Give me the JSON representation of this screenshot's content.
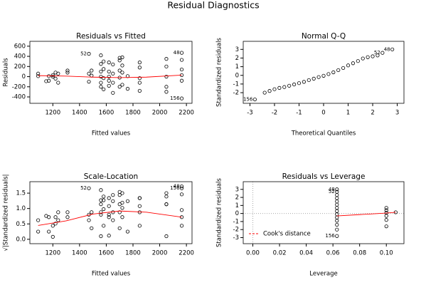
{
  "title": "Residual Diagnostics",
  "chart_data": [
    {
      "type": "scatter",
      "title": "Residuals vs Fitted",
      "xlabel": "Fitted values",
      "ylabel": "Residuals",
      "color": "#000000",
      "x": [
        1090,
        1090,
        1150,
        1170,
        1170,
        1200,
        1200,
        1220,
        1220,
        1240,
        1240,
        1310,
        1310,
        1470,
        1470,
        1470,
        1490,
        1490,
        1560,
        1560,
        1560,
        1560,
        1560,
        1560,
        1580,
        1580,
        1580,
        1580,
        1620,
        1620,
        1620,
        1620,
        1620,
        1650,
        1650,
        1650,
        1650,
        1700,
        1700,
        1700,
        1700,
        1700,
        1720,
        1720,
        1720,
        1720,
        1760,
        1760,
        1850,
        1850,
        1850,
        1850,
        1850,
        2050,
        2050,
        2050,
        2050,
        2050,
        2165,
        2165,
        2165,
        2165,
        2165,
        2165
      ],
      "values": [
        60,
        10,
        -90,
        10,
        -80,
        30,
        0,
        80,
        -40,
        60,
        -120,
        120,
        80,
        450,
        60,
        -100,
        120,
        20,
        420,
        250,
        100,
        0,
        -120,
        -200,
        300,
        150,
        -30,
        -250,
        280,
        100,
        0,
        -80,
        -180,
        240,
        60,
        -120,
        -320,
        370,
        320,
        120,
        -20,
        -200,
        380,
        220,
        80,
        -160,
        10,
        -240,
        280,
        180,
        -30,
        -120,
        -280,
        350,
        200,
        0,
        -200,
        -300,
        470,
        330,
        140,
        30,
        -80,
        -430
      ],
      "smooth": {
        "color": "#ff0000",
        "x": [
          1090,
          1300,
          1500,
          1700,
          1900,
          2165
        ],
        "values": [
          20,
          10,
          -10,
          -20,
          -10,
          30
        ]
      },
      "annotations": [
        {
          "label": "48",
          "x": 2165,
          "y": 470
        },
        {
          "label": "52",
          "x": 1470,
          "y": 450
        },
        {
          "label": "156",
          "x": 2165,
          "y": -430
        }
      ],
      "xlim": [
        1060,
        2210
      ],
      "xticks": [
        1200,
        1400,
        1600,
        1800,
        2000,
        2200
      ],
      "ylim": [
        -470,
        640
      ],
      "yticks": [
        -400,
        -200,
        0,
        200,
        400,
        600
      ]
    },
    {
      "type": "scatter",
      "title": "Normal Q-Q",
      "xlabel": "Theoretical Quantiles",
      "ylabel": "Standardized residuals",
      "color": "#000000",
      "x": [
        -2.8,
        -2.4,
        -2.2,
        -2.0,
        -1.8,
        -1.6,
        -1.4,
        -1.2,
        -1.0,
        -0.8,
        -0.6,
        -0.4,
        -0.2,
        0,
        0.2,
        0.4,
        0.6,
        0.8,
        1.0,
        1.2,
        1.4,
        1.6,
        1.8,
        2.0,
        2.2,
        2.4,
        2.8
      ],
      "values": [
        -2.78,
        -2.0,
        -1.8,
        -1.6,
        -1.45,
        -1.35,
        -1.2,
        -1.05,
        -0.9,
        -0.75,
        -0.55,
        -0.38,
        -0.2,
        -0.05,
        0.15,
        0.35,
        0.6,
        0.85,
        1.15,
        1.4,
        1.65,
        1.95,
        2.1,
        2.2,
        2.3,
        2.6,
        3.0
      ],
      "annotations": [
        {
          "label": "156",
          "x": -2.8,
          "y": -2.78
        },
        {
          "label": "52",
          "x": 2.4,
          "y": 2.6
        },
        {
          "label": "48",
          "x": 2.8,
          "y": 3.0
        }
      ],
      "xlim": [
        -3.1,
        3.1
      ],
      "xticks": [
        -3,
        -2,
        -1,
        0,
        1,
        2,
        3
      ],
      "ylim": [
        -2.9,
        3.6
      ],
      "yticks": [
        -2,
        -1,
        0,
        1,
        2,
        3
      ]
    },
    {
      "type": "scatter",
      "title": "Scale-Location",
      "xlabel": "Fitted values",
      "ylabel": "√|Standardized residuals|",
      "color": "#000000",
      "x": [
        1090,
        1090,
        1150,
        1170,
        1170,
        1200,
        1200,
        1220,
        1220,
        1240,
        1240,
        1310,
        1310,
        1470,
        1470,
        1470,
        1490,
        1490,
        1560,
        1560,
        1560,
        1560,
        1560,
        1560,
        1580,
        1580,
        1580,
        1580,
        1620,
        1620,
        1620,
        1620,
        1620,
        1650,
        1650,
        1650,
        1650,
        1700,
        1700,
        1700,
        1700,
        1700,
        1720,
        1720,
        1720,
        1720,
        1760,
        1760,
        1850,
        1850,
        1850,
        1850,
        1850,
        2050,
        2050,
        2050,
        2050,
        2050,
        2165,
        2165,
        2165,
        2165,
        2165,
        2165
      ],
      "values": [
        0.62,
        0.25,
        0.76,
        0.25,
        0.72,
        0.44,
        0.08,
        0.72,
        0.51,
        0.62,
        0.88,
        0.88,
        0.72,
        1.66,
        0.62,
        0.8,
        0.88,
        0.36,
        1.6,
        1.27,
        0.8,
        0.1,
        0.88,
        1.14,
        1.39,
        0.98,
        0.44,
        1.27,
        1.34,
        0.8,
        0.12,
        0.72,
        1.08,
        1.24,
        0.62,
        0.88,
        1.44,
        1.54,
        1.44,
        0.88,
        0.36,
        1.14,
        1.5,
        1.19,
        0.72,
        1.02,
        0.25,
        1.24,
        1.34,
        1.08,
        0.44,
        0.88,
        1.34,
        1.5,
        1.14,
        0.1,
        1.14,
        1.39,
        1.72,
        1.46,
        0.95,
        0.44,
        0.72,
        1.66
      ],
      "smooth": {
        "color": "#ff0000",
        "x": [
          1090,
          1300,
          1500,
          1700,
          1900,
          2165
        ],
        "values": [
          0.45,
          0.6,
          0.82,
          0.92,
          0.88,
          0.72
        ]
      },
      "annotations": [
        {
          "label": "52",
          "x": 1470,
          "y": 1.66
        },
        {
          "label": "48",
          "x": 2165,
          "y": 1.72
        },
        {
          "label": "156",
          "x": 2165,
          "y": 1.66
        }
      ],
      "xlim": [
        1060,
        2210
      ],
      "xticks": [
        1200,
        1400,
        1600,
        1800,
        2000,
        2200
      ],
      "ylim": [
        -0.05,
        1.78
      ],
      "yticks": [
        {
          "value": 0,
          "label": "0.0"
        },
        0.5,
        {
          "value": 1,
          "label": "1.0"
        },
        1.5
      ]
    },
    {
      "type": "scatter",
      "title": "Residuals vs Leverage",
      "xlabel": "Leverage",
      "ylabel": "Standardized residuals",
      "color": "#000000",
      "x": [
        0.063,
        0.063,
        0.063,
        0.063,
        0.063,
        0.063,
        0.063,
        0.063,
        0.063,
        0.063,
        0.063,
        0.063,
        0.063,
        0.063,
        0.1,
        0.1,
        0.1,
        0.1,
        0.1,
        0.1,
        0.107
      ],
      "values": [
        3.0,
        2.7,
        2.3,
        1.9,
        1.5,
        1.1,
        0.7,
        0.3,
        -0.1,
        -0.5,
        -0.9,
        -1.4,
        -2.0,
        -2.8,
        0.7,
        0.4,
        0.1,
        -0.3,
        -0.8,
        -1.6,
        0.15
      ],
      "smooth": {
        "color": "#ff0000",
        "x": [
          0.063,
          0.1,
          0.107
        ],
        "values": [
          -0.3,
          0.05,
          0.15
        ]
      },
      "annotations": [
        {
          "label": "48",
          "x": 0.063,
          "y": 3.0
        },
        {
          "label": "52",
          "x": 0.063,
          "y": 2.7
        },
        {
          "label": "156",
          "x": 0.063,
          "y": -2.8
        }
      ],
      "legend": {
        "label": "Cook's distance",
        "color": "#ff0000",
        "position": "bottom-left"
      },
      "xlim": [
        -0.004,
        0.11
      ],
      "xticks": [
        {
          "value": 0,
          "label": "0.00"
        },
        0.02,
        0.04,
        0.06,
        0.08,
        {
          "value": 0.1,
          "label": "0.10"
        }
      ],
      "ylim": [
        -3.4,
        3.6
      ],
      "yticks": [
        -3,
        -2,
        -1,
        0,
        1,
        2,
        3
      ]
    }
  ]
}
